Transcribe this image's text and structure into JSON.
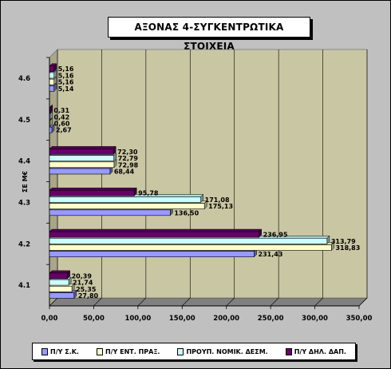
{
  "chart_data": {
    "type": "bar",
    "orientation": "horizontal",
    "title": "ΑΞΟΝΑΣ 4-ΣΥΓΚΕΝΤΡΩΤΙΚΑ ΣΤΟΙΧΕΙΑ",
    "ylabel": "ΣΕ Μ€",
    "xlabel": "",
    "categories": [
      "4.1",
      "4.2",
      "4.3",
      "4.4",
      "4.5",
      "4.6"
    ],
    "xlim": [
      0,
      350
    ],
    "x_ticks": [
      "0,00",
      "50,00",
      "100,00",
      "150,00",
      "200,00",
      "250,00",
      "300,00",
      "350,00"
    ],
    "grid": "vertical",
    "legend_position": "bottom",
    "series": [
      {
        "name": "Π/Υ Σ.Κ.",
        "color": "#9999ff",
        "values": [
          27.8,
          231.43,
          136.5,
          68.44,
          2.67,
          5.14
        ],
        "labels": [
          "27,80",
          "231,43",
          "136,50",
          "68,44",
          "2,67",
          "5,14"
        ]
      },
      {
        "name": "Π/Υ ΕΝΤ. ΠΡΑΞ.",
        "color": "#ffffcc",
        "values": [
          25.35,
          318.83,
          175.13,
          72.98,
          0.6,
          5.16
        ],
        "labels": [
          "25,35",
          "318,83",
          "175,13",
          "72,98",
          "0,60",
          "5,16"
        ]
      },
      {
        "name": "ΠΡΟΥΠ. ΝΟΜΙΚ. ΔΕΣΜ.",
        "color": "#ccffff",
        "values": [
          21.74,
          313.79,
          171.08,
          72.79,
          0.42,
          5.16
        ],
        "labels": [
          "21,74",
          "313,79",
          "171,08",
          "72,79",
          "0,42",
          "5,16"
        ]
      },
      {
        "name": "Π/Υ ΔΗΛ. ΔΑΠ.",
        "color": "#660066",
        "values": [
          20.39,
          236.95,
          95.78,
          72.3,
          0.31,
          5.16
        ],
        "labels": [
          "20,39",
          "236,95",
          "95,78",
          "72,30",
          "0,31",
          "5,16"
        ]
      }
    ]
  }
}
